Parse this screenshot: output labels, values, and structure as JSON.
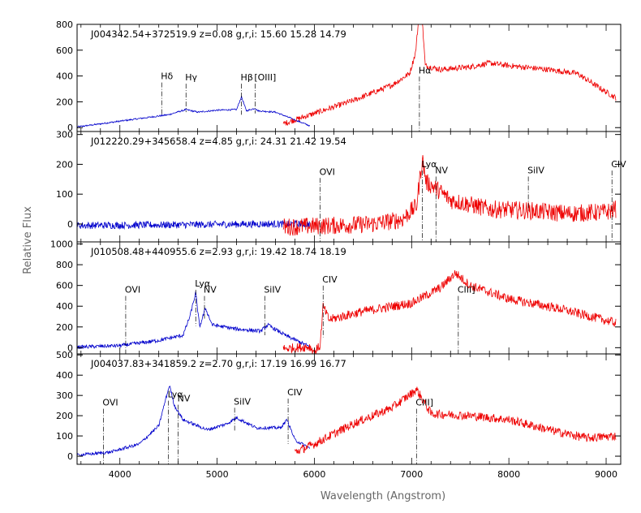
{
  "chart_data": {
    "type": "line",
    "xlabel": "Wavelength (Angstrom)",
    "ylabel": "Relative Flux",
    "xlim": [
      3560,
      9150
    ],
    "x_ticks": [
      4000,
      5000,
      6000,
      7000,
      8000,
      9000
    ],
    "series_colors": {
      "blue": "#0000cc",
      "red": "#ee0000"
    },
    "panels": [
      {
        "header": "J004342.54+372519.9   z=0.08   g,r,i:  15.60  15.28  14.79",
        "ylim": [
          -30,
          800
        ],
        "y_ticks": [
          0,
          200,
          400,
          600,
          800
        ],
        "lines": [
          {
            "label": "Hδ",
            "x": 4430,
            "top": 375,
            "bottom": 100,
            "dx": 0
          },
          {
            "label": "Hγ",
            "x": 4680,
            "top": 365,
            "bottom": 120,
            "dx": 0
          },
          {
            "label": "Hβ",
            "x": 5250,
            "top": 365,
            "bottom": 100,
            "dx": 0
          },
          {
            "label": "[OIII]",
            "x": 5390,
            "top": 365,
            "bottom": 110,
            "dx": 0
          },
          {
            "label": "Hα",
            "x": 7080,
            "top": 420,
            "bottom": -30,
            "dx": 0
          }
        ],
        "blue_segments": [
          [
            3560,
            5
          ],
          [
            4000,
            50
          ],
          [
            4500,
            100
          ],
          [
            4680,
            140
          ],
          [
            4800,
            120
          ],
          [
            5000,
            135
          ],
          [
            5200,
            140
          ],
          [
            5250,
            240
          ],
          [
            5300,
            130
          ],
          [
            5390,
            150
          ],
          [
            5420,
            130
          ],
          [
            5600,
            120
          ],
          [
            5800,
            60
          ],
          [
            5950,
            15
          ]
        ],
        "red_segments": [
          [
            5680,
            30
          ],
          [
            6000,
            110
          ],
          [
            6400,
            210
          ],
          [
            6800,
            330
          ],
          [
            6980,
            420
          ],
          [
            7040,
            580
          ],
          [
            7070,
            820
          ],
          [
            7110,
            820
          ],
          [
            7140,
            480
          ],
          [
            7300,
            450
          ],
          [
            7600,
            470
          ],
          [
            7800,
            500
          ],
          [
            8000,
            480
          ],
          [
            8400,
            450
          ],
          [
            8700,
            420
          ],
          [
            8950,
            300
          ],
          [
            9100,
            230
          ]
        ],
        "blue_noise": 6,
        "red_noise": 22
      },
      {
        "header": "J012220.29+345658.4  z=4.85   g,r,i:  24.31  21.42  19.54",
        "ylim": [
          -60,
          310
        ],
        "y_ticks": [
          0,
          100,
          200,
          300
        ],
        "lines": [
          {
            "label": "OVI",
            "x": 6060,
            "top": 165,
            "bottom": -60,
            "dx": 0
          },
          {
            "label": "Lyα",
            "x": 7110,
            "top": 190,
            "bottom": -60,
            "dx": 0
          },
          {
            "label": "NV",
            "x": 7250,
            "top": 170,
            "bottom": -60,
            "dx": 0
          },
          {
            "label": "SiIV",
            "x": 8200,
            "top": 170,
            "bottom": 40,
            "dx": 0
          },
          {
            "label": "CIV",
            "x": 9060,
            "top": 190,
            "bottom": -60,
            "dx": 0
          }
        ],
        "blue_segments": [
          [
            3560,
            -5
          ],
          [
            4500,
            -3
          ],
          [
            5500,
            0
          ],
          [
            5950,
            0
          ]
        ],
        "red_segments": [
          [
            5680,
            -10
          ],
          [
            6200,
            -5
          ],
          [
            6600,
            0
          ],
          [
            6900,
            15
          ],
          [
            7050,
            60
          ],
          [
            7110,
            220
          ],
          [
            7150,
            140
          ],
          [
            7250,
            120
          ],
          [
            7400,
            80
          ],
          [
            7800,
            50
          ],
          [
            8200,
            45
          ],
          [
            8600,
            35
          ],
          [
            9000,
            40
          ],
          [
            9100,
            50
          ]
        ],
        "blue_noise": 12,
        "red_noise": 30
      },
      {
        "header": "J010508.48+440955.6  z=2.93   g,r,i:  19.42  18.74  18.19",
        "ylim": [
          -60,
          1020
        ],
        "y_ticks": [
          0,
          200,
          400,
          600,
          800,
          1000
        ],
        "lines": [
          {
            "label": "OVI",
            "x": 4060,
            "top": 530,
            "bottom": -60,
            "dx": 0
          },
          {
            "label": "Lyα",
            "x": 4780,
            "top": 590,
            "bottom": 210,
            "dx": 0
          },
          {
            "label": "NV",
            "x": 4870,
            "top": 530,
            "bottom": 280,
            "dx": 0
          },
          {
            "label": "SiIV",
            "x": 5490,
            "top": 530,
            "bottom": 120,
            "dx": 0
          },
          {
            "label": "CIV",
            "x": 6090,
            "top": 630,
            "bottom": 100,
            "dx": 0
          },
          {
            "label": "CIII]",
            "x": 7480,
            "top": 530,
            "bottom": -60,
            "dx": 0
          }
        ],
        "blue_segments": [
          [
            3560,
            5
          ],
          [
            4000,
            20
          ],
          [
            4400,
            70
          ],
          [
            4650,
            120
          ],
          [
            4720,
            300
          ],
          [
            4780,
            530
          ],
          [
            4820,
            200
          ],
          [
            4880,
            380
          ],
          [
            4950,
            220
          ],
          [
            5200,
            180
          ],
          [
            5450,
            160
          ],
          [
            5520,
            220
          ],
          [
            5700,
            120
          ],
          [
            5950,
            10
          ]
        ],
        "red_segments": [
          [
            5680,
            -10
          ],
          [
            5950,
            10
          ],
          [
            6000,
            -40
          ],
          [
            6060,
            20
          ],
          [
            6090,
            400
          ],
          [
            6150,
            270
          ],
          [
            6500,
            350
          ],
          [
            7000,
            430
          ],
          [
            7300,
            580
          ],
          [
            7450,
            720
          ],
          [
            7600,
            600
          ],
          [
            8000,
            470
          ],
          [
            8500,
            380
          ],
          [
            9100,
            240
          ]
        ],
        "blue_noise": 18,
        "red_noise": 45
      },
      {
        "header": "J004037.83+341859.2  z=2.70   g,r,i:  17.19  16.99  16.77",
        "ylim": [
          -40,
          505
        ],
        "y_ticks": [
          0,
          100,
          200,
          300,
          400,
          500
        ],
        "lines": [
          {
            "label": "OVI",
            "x": 3830,
            "top": 250,
            "bottom": -40,
            "dx": 0
          },
          {
            "label": "Lyα",
            "x": 4500,
            "top": 290,
            "bottom": -40,
            "dx": 0
          },
          {
            "label": "NV",
            "x": 4600,
            "top": 270,
            "bottom": -40,
            "dx": 0
          },
          {
            "label": "SiIV",
            "x": 5180,
            "top": 255,
            "bottom": 120,
            "dx": 0
          },
          {
            "label": "CIV",
            "x": 5730,
            "top": 300,
            "bottom": 60,
            "dx": 0
          },
          {
            "label": "CIII]",
            "x": 7050,
            "top": 250,
            "bottom": -40,
            "dx": 0
          }
        ],
        "blue_segments": [
          [
            3560,
            5
          ],
          [
            3900,
            20
          ],
          [
            4200,
            60
          ],
          [
            4400,
            150
          ],
          [
            4470,
            280
          ],
          [
            4510,
            350
          ],
          [
            4560,
            250
          ],
          [
            4650,
            180
          ],
          [
            4900,
            130
          ],
          [
            5100,
            160
          ],
          [
            5200,
            190
          ],
          [
            5400,
            140
          ],
          [
            5650,
            140
          ],
          [
            5720,
            180
          ],
          [
            5800,
            80
          ],
          [
            5950,
            40
          ]
        ],
        "red_segments": [
          [
            5800,
            20
          ],
          [
            6000,
            60
          ],
          [
            6400,
            160
          ],
          [
            6800,
            240
          ],
          [
            7000,
            310
          ],
          [
            7050,
            330
          ],
          [
            7200,
            210
          ],
          [
            7600,
            200
          ],
          [
            8000,
            180
          ],
          [
            8500,
            120
          ],
          [
            8800,
            90
          ],
          [
            9100,
            100
          ]
        ],
        "blue_noise": 8,
        "red_noise": 22
      }
    ]
  }
}
